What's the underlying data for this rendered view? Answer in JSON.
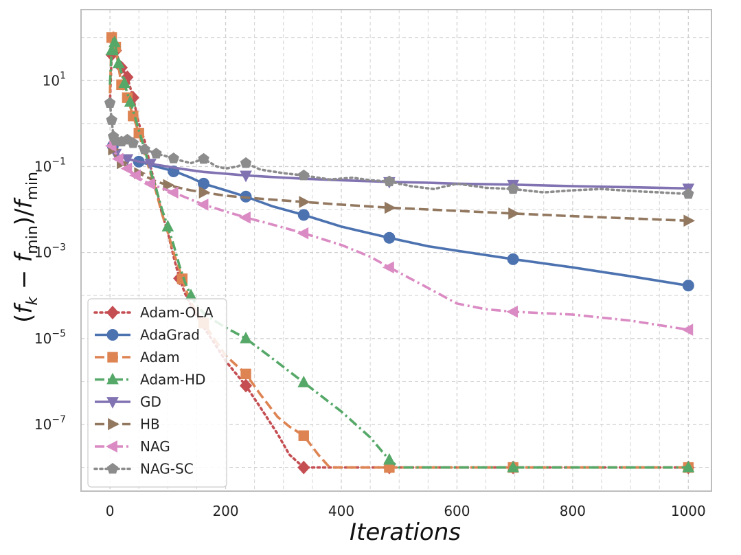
{
  "chart_data": {
    "type": "line",
    "title": "",
    "xlabel": "Iterations",
    "ylabel_parts": {
      "open": "(",
      "f1": "f",
      "sub1": "k",
      "minus": " − ",
      "f2": "f",
      "sub2": "min",
      "close": ")/",
      "f3": "f",
      "sub3": "min"
    },
    "xlim": [
      -50,
      1040
    ],
    "ylim_log10": [
      -8.55,
      2.65
    ],
    "yscale": "log",
    "grid": true,
    "legend_position": "lower-left",
    "x_ticks": [
      0,
      200,
      400,
      600,
      800,
      1000
    ],
    "x_tick_labels": [
      "0",
      "200",
      "400",
      "600",
      "800",
      "1000"
    ],
    "y_ticks_exp": [
      1,
      -1,
      -3,
      -5,
      -7
    ],
    "y_tick_base": "10",
    "y_tick_exps": [
      "1",
      "−1",
      "−3",
      "−5",
      "−7"
    ],
    "series": [
      {
        "name": "Adam-OLA",
        "color": "#c44e52",
        "dash": "dotted",
        "marker": "diamond",
        "x": [
          0,
          3,
          6,
          10,
          15,
          20,
          30,
          40,
          50,
          60,
          70,
          80,
          90,
          100,
          110,
          120,
          130,
          140,
          150,
          160,
          180,
          200,
          235,
          260,
          290,
          310,
          335,
          360,
          400,
          483,
          600,
          697,
          800,
          900,
          1000
        ],
        "y": [
          3,
          40,
          80,
          50,
          30,
          20,
          12,
          4,
          1,
          0.4,
          0.1,
          0.03,
          0.008,
          0.003,
          0.0008,
          0.00025,
          0.00011,
          6e-05,
          3.5e-05,
          2e-05,
          8e-06,
          3e-06,
          8e-07,
          2.5e-07,
          6e-08,
          2e-08,
          1e-08,
          1e-08,
          1e-08,
          1e-08,
          1e-08,
          1e-08,
          1e-08,
          1e-08,
          1e-08
        ],
        "marker_x": [
          3,
          10,
          20,
          30,
          40,
          120,
          235,
          335,
          483,
          697,
          1000
        ]
      },
      {
        "name": "AdaGrad",
        "color": "#4c72b0",
        "dash": "solid",
        "marker": "circle",
        "x": [
          0,
          5,
          10,
          15,
          20,
          30,
          40,
          50,
          60,
          80,
          100,
          120,
          140,
          162,
          200,
          235,
          280,
          335,
          400,
          483,
          550,
          600,
          697,
          800,
          900,
          1000
        ],
        "y": [
          0.5,
          0.3,
          0.2,
          0.18,
          0.17,
          0.15,
          0.14,
          0.13,
          0.12,
          0.1,
          0.085,
          0.07,
          0.055,
          0.04,
          0.028,
          0.02,
          0.012,
          0.0075,
          0.004,
          0.0022,
          0.0014,
          0.0011,
          0.0007,
          0.00045,
          0.00028,
          0.00017
        ],
        "marker_x": [
          5,
          50,
          110,
          162,
          235,
          335,
          483,
          697,
          1000
        ]
      },
      {
        "name": "Adam",
        "color": "#dd8452",
        "dash": "dashed",
        "marker": "square",
        "x": [
          0,
          3,
          6,
          10,
          15,
          20,
          30,
          40,
          50,
          60,
          70,
          80,
          90,
          100,
          110,
          120,
          130,
          140,
          150,
          160,
          180,
          200,
          235,
          260,
          290,
          310,
          335,
          360,
          380,
          400,
          483,
          600,
          697,
          800,
          900,
          1000
        ],
        "y": [
          5,
          100,
          130,
          60,
          20,
          8,
          4,
          1.5,
          0.6,
          0.2,
          0.07,
          0.025,
          0.008,
          0.003,
          0.001,
          0.0004,
          0.00015,
          7e-05,
          4e-05,
          2.5e-05,
          1e-05,
          4e-06,
          1.5e-06,
          5e-07,
          1.5e-07,
          9e-08,
          5.5e-08,
          2e-08,
          1e-08,
          1e-08,
          1e-08,
          1e-08,
          1e-08,
          1e-08,
          1e-08,
          1e-08
        ],
        "marker_x": [
          3,
          10,
          20,
          30,
          40,
          50,
          125,
          162,
          235,
          335,
          483,
          697,
          1000
        ]
      },
      {
        "name": "Adam-HD",
        "color": "#55a868",
        "dash": "dashdot",
        "marker": "triangle-up",
        "x": [
          0,
          3,
          6,
          10,
          15,
          20,
          30,
          40,
          50,
          60,
          70,
          80,
          90,
          100,
          110,
          120,
          130,
          140,
          150,
          165,
          200,
          235,
          280,
          335,
          400,
          450,
          483,
          500,
          600,
          697,
          800,
          900,
          1000
        ],
        "y": [
          8,
          50,
          100,
          60,
          25,
          15,
          5,
          2,
          0.7,
          0.25,
          0.08,
          0.03,
          0.01,
          0.004,
          0.0015,
          0.0005,
          0.0002,
          0.0001,
          6e-05,
          3.5e-05,
          1.8e-05,
          1e-05,
          3.5e-06,
          9.5e-07,
          2e-07,
          5e-08,
          1.5e-08,
          1e-08,
          1e-08,
          1e-08,
          1e-08,
          1e-08,
          1e-08
        ],
        "marker_x": [
          3,
          8,
          15,
          25,
          35,
          100,
          140,
          235,
          335,
          483,
          697,
          1000
        ]
      },
      {
        "name": "GD",
        "color": "#8172b2",
        "dash": "solid",
        "marker": "triangle-down",
        "x": [
          0,
          5,
          10,
          15,
          20,
          30,
          40,
          50,
          60,
          80,
          100,
          120,
          140,
          162,
          200,
          235,
          280,
          335,
          400,
          483,
          550,
          600,
          697,
          800,
          900,
          1000
        ],
        "y": [
          0.4,
          0.25,
          0.2,
          0.18,
          0.17,
          0.15,
          0.14,
          0.13,
          0.125,
          0.11,
          0.1,
          0.09,
          0.082,
          0.075,
          0.068,
          0.062,
          0.057,
          0.052,
          0.048,
          0.044,
          0.042,
          0.04,
          0.038,
          0.035,
          0.033,
          0.031
        ],
        "marker_x": [
          10,
          30,
          70,
          235,
          483,
          697,
          1000
        ]
      },
      {
        "name": "HB",
        "color": "#937860",
        "dash": "dashed",
        "marker": "triangle-right",
        "x": [
          0,
          5,
          10,
          15,
          20,
          30,
          40,
          50,
          60,
          80,
          100,
          120,
          140,
          162,
          200,
          235,
          280,
          335,
          400,
          483,
          550,
          600,
          697,
          800,
          900,
          1000
        ],
        "y": [
          0.4,
          0.25,
          0.17,
          0.14,
          0.12,
          0.1,
          0.085,
          0.07,
          0.06,
          0.045,
          0.037,
          0.032,
          0.028,
          0.025,
          0.021,
          0.019,
          0.017,
          0.015,
          0.013,
          0.011,
          0.01,
          0.0093,
          0.0081,
          0.007,
          0.0062,
          0.0055
        ],
        "marker_x": [
          5,
          20,
          50,
          100,
          162,
          335,
          483,
          697,
          1000
        ]
      },
      {
        "name": "NAG",
        "color": "#da8bc3",
        "dash": "dashdot",
        "marker": "triangle-left",
        "x": [
          0,
          5,
          10,
          15,
          20,
          30,
          40,
          50,
          60,
          80,
          100,
          120,
          140,
          162,
          200,
          235,
          280,
          335,
          400,
          450,
          483,
          550,
          600,
          650,
          697,
          800,
          900,
          1000
        ],
        "y": [
          0.4,
          0.25,
          0.2,
          0.15,
          0.12,
          0.09,
          0.07,
          0.055,
          0.045,
          0.035,
          0.028,
          0.022,
          0.017,
          0.013,
          0.009,
          0.0065,
          0.0045,
          0.0028,
          0.0015,
          0.0008,
          0.00045,
          0.00015,
          6.5e-05,
          4.8e-05,
          4.2e-05,
          3.6e-05,
          2.6e-05,
          1.6e-05
        ],
        "marker_x": [
          3,
          15,
          30,
          45,
          70,
          110,
          162,
          235,
          335,
          483,
          697,
          1000
        ]
      },
      {
        "name": "NAG-SC",
        "color": "#8c8c8c",
        "dash": "dotted",
        "marker": "pentagon",
        "x": [
          0,
          3,
          6,
          10,
          15,
          20,
          30,
          40,
          50,
          60,
          80,
          100,
          120,
          140,
          162,
          185,
          200,
          220,
          235,
          260,
          300,
          335,
          380,
          420,
          450,
          483,
          520,
          560,
          600,
          650,
          697,
          750,
          800,
          850,
          900,
          950,
          1000
        ],
        "y": [
          3,
          1.2,
          0.5,
          0.4,
          0.45,
          0.38,
          0.42,
          0.35,
          0.3,
          0.25,
          0.2,
          0.17,
          0.14,
          0.12,
          0.15,
          0.1,
          0.09,
          0.1,
          0.12,
          0.085,
          0.07,
          0.062,
          0.05,
          0.055,
          0.048,
          0.045,
          0.035,
          0.03,
          0.04,
          0.032,
          0.03,
          0.025,
          0.028,
          0.03,
          0.027,
          0.025,
          0.023
        ],
        "marker_x": [
          0,
          3,
          6,
          10,
          20,
          30,
          40,
          60,
          80,
          110,
          162,
          235,
          335,
          483,
          697,
          1000
        ]
      }
    ]
  }
}
